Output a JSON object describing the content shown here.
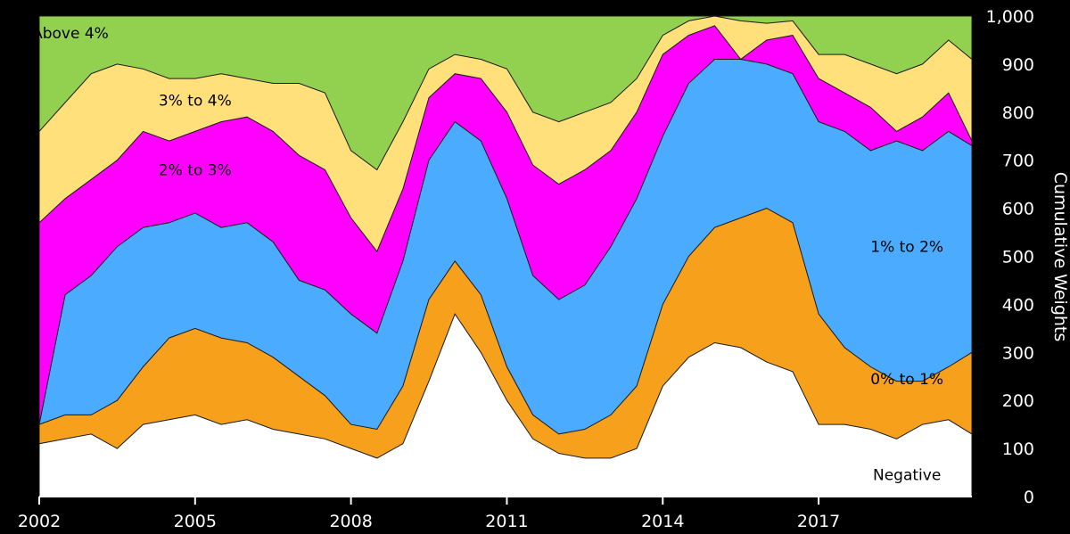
{
  "chart_data": {
    "type": "area",
    "stacked": true,
    "title": "",
    "xlabel": "",
    "ylabel": "Cumulative Weights",
    "xlim": [
      2002,
      2019.95
    ],
    "ylim": [
      0,
      1000
    ],
    "x_ticks": [
      "2002",
      "2005",
      "2008",
      "2011",
      "2014",
      "2017"
    ],
    "y_ticks": [
      "0",
      "100",
      "200",
      "300",
      "400",
      "500",
      "600",
      "700",
      "800",
      "900",
      "1,000"
    ],
    "y_axis_position": "right",
    "grid": false,
    "legend": "none (labels placed on areas)",
    "background": "#000000",
    "x": [
      2002.0,
      2002.5,
      2003.0,
      2003.5,
      2004.0,
      2004.5,
      2005.0,
      2005.5,
      2006.0,
      2006.5,
      2007.0,
      2007.5,
      2008.0,
      2008.5,
      2009.0,
      2009.5,
      2010.0,
      2010.5,
      2011.0,
      2011.5,
      2012.0,
      2012.5,
      2013.0,
      2013.5,
      2014.0,
      2014.5,
      2015.0,
      2015.5,
      2016.0,
      2016.5,
      2017.0,
      2017.5,
      2018.0,
      2018.5,
      2019.0,
      2019.5,
      2019.95
    ],
    "series": [
      {
        "name": "Negative",
        "color": "#ffffff",
        "values": [
          110,
          120,
          130,
          100,
          150,
          160,
          170,
          150,
          160,
          140,
          130,
          120,
          100,
          80,
          110,
          240,
          380,
          300,
          200,
          120,
          90,
          80,
          80,
          100,
          230,
          290,
          320,
          310,
          280,
          260,
          150,
          150,
          140,
          120,
          150,
          160,
          130
        ]
      },
      {
        "name": "0% to 1%",
        "color": "#f7a01b",
        "values": [
          150,
          170,
          170,
          200,
          270,
          330,
          350,
          330,
          320,
          290,
          250,
          210,
          150,
          140,
          230,
          410,
          490,
          420,
          270,
          170,
          130,
          140,
          170,
          230,
          400,
          500,
          560,
          580,
          600,
          570,
          380,
          310,
          270,
          240,
          240,
          270,
          300
        ]
      },
      {
        "name": "1% to 2%",
        "color": "#4aabff",
        "values": [
          150,
          420,
          460,
          520,
          560,
          570,
          590,
          560,
          570,
          530,
          450,
          430,
          380,
          340,
          490,
          700,
          780,
          740,
          620,
          460,
          410,
          440,
          520,
          620,
          750,
          860,
          910,
          910,
          900,
          880,
          780,
          760,
          720,
          740,
          720,
          760,
          730
        ]
      },
      {
        "name": "2% to 3%",
        "color": "#ff00ff",
        "values": [
          570,
          620,
          660,
          700,
          760,
          740,
          760,
          780,
          790,
          760,
          710,
          680,
          580,
          510,
          640,
          830,
          880,
          870,
          800,
          690,
          650,
          680,
          720,
          800,
          920,
          960,
          980,
          910,
          950,
          960,
          870,
          840,
          810,
          760,
          790,
          840,
          740
        ]
      },
      {
        "name": "3% to 4%",
        "color": "#ffe07a",
        "values": [
          760,
          820,
          880,
          900,
          890,
          870,
          870,
          880,
          870,
          860,
          860,
          840,
          720,
          680,
          780,
          890,
          920,
          910,
          890,
          800,
          780,
          800,
          820,
          870,
          960,
          990,
          1000,
          990,
          985,
          990,
          920,
          920,
          900,
          880,
          900,
          950,
          910
        ]
      },
      {
        "name": "Above 4%",
        "color": "#92d050",
        "values": [
          1000,
          1000,
          1000,
          1000,
          1000,
          1000,
          1000,
          1000,
          1000,
          1000,
          1000,
          1000,
          1000,
          1000,
          1000,
          1000,
          1000,
          1000,
          1000,
          1000,
          1000,
          1000,
          1000,
          1000,
          1000,
          1000,
          1000,
          1000,
          1000,
          1000,
          1000,
          1000,
          1000,
          1000,
          1000,
          1000,
          1000
        ]
      }
    ],
    "area_labels": [
      {
        "series": "Above 4%",
        "x": 2002.6,
        "y": 965
      },
      {
        "series": "3% to 4%",
        "x": 2005.0,
        "y": 825
      },
      {
        "series": "2% to 3%",
        "x": 2005.0,
        "y": 680
      },
      {
        "series": "1% to 2%",
        "x": 2018.7,
        "y": 520
      },
      {
        "series": "0% to 1%",
        "x": 2018.7,
        "y": 245
      },
      {
        "series": "Negative",
        "x": 2018.7,
        "y": 45
      }
    ]
  }
}
